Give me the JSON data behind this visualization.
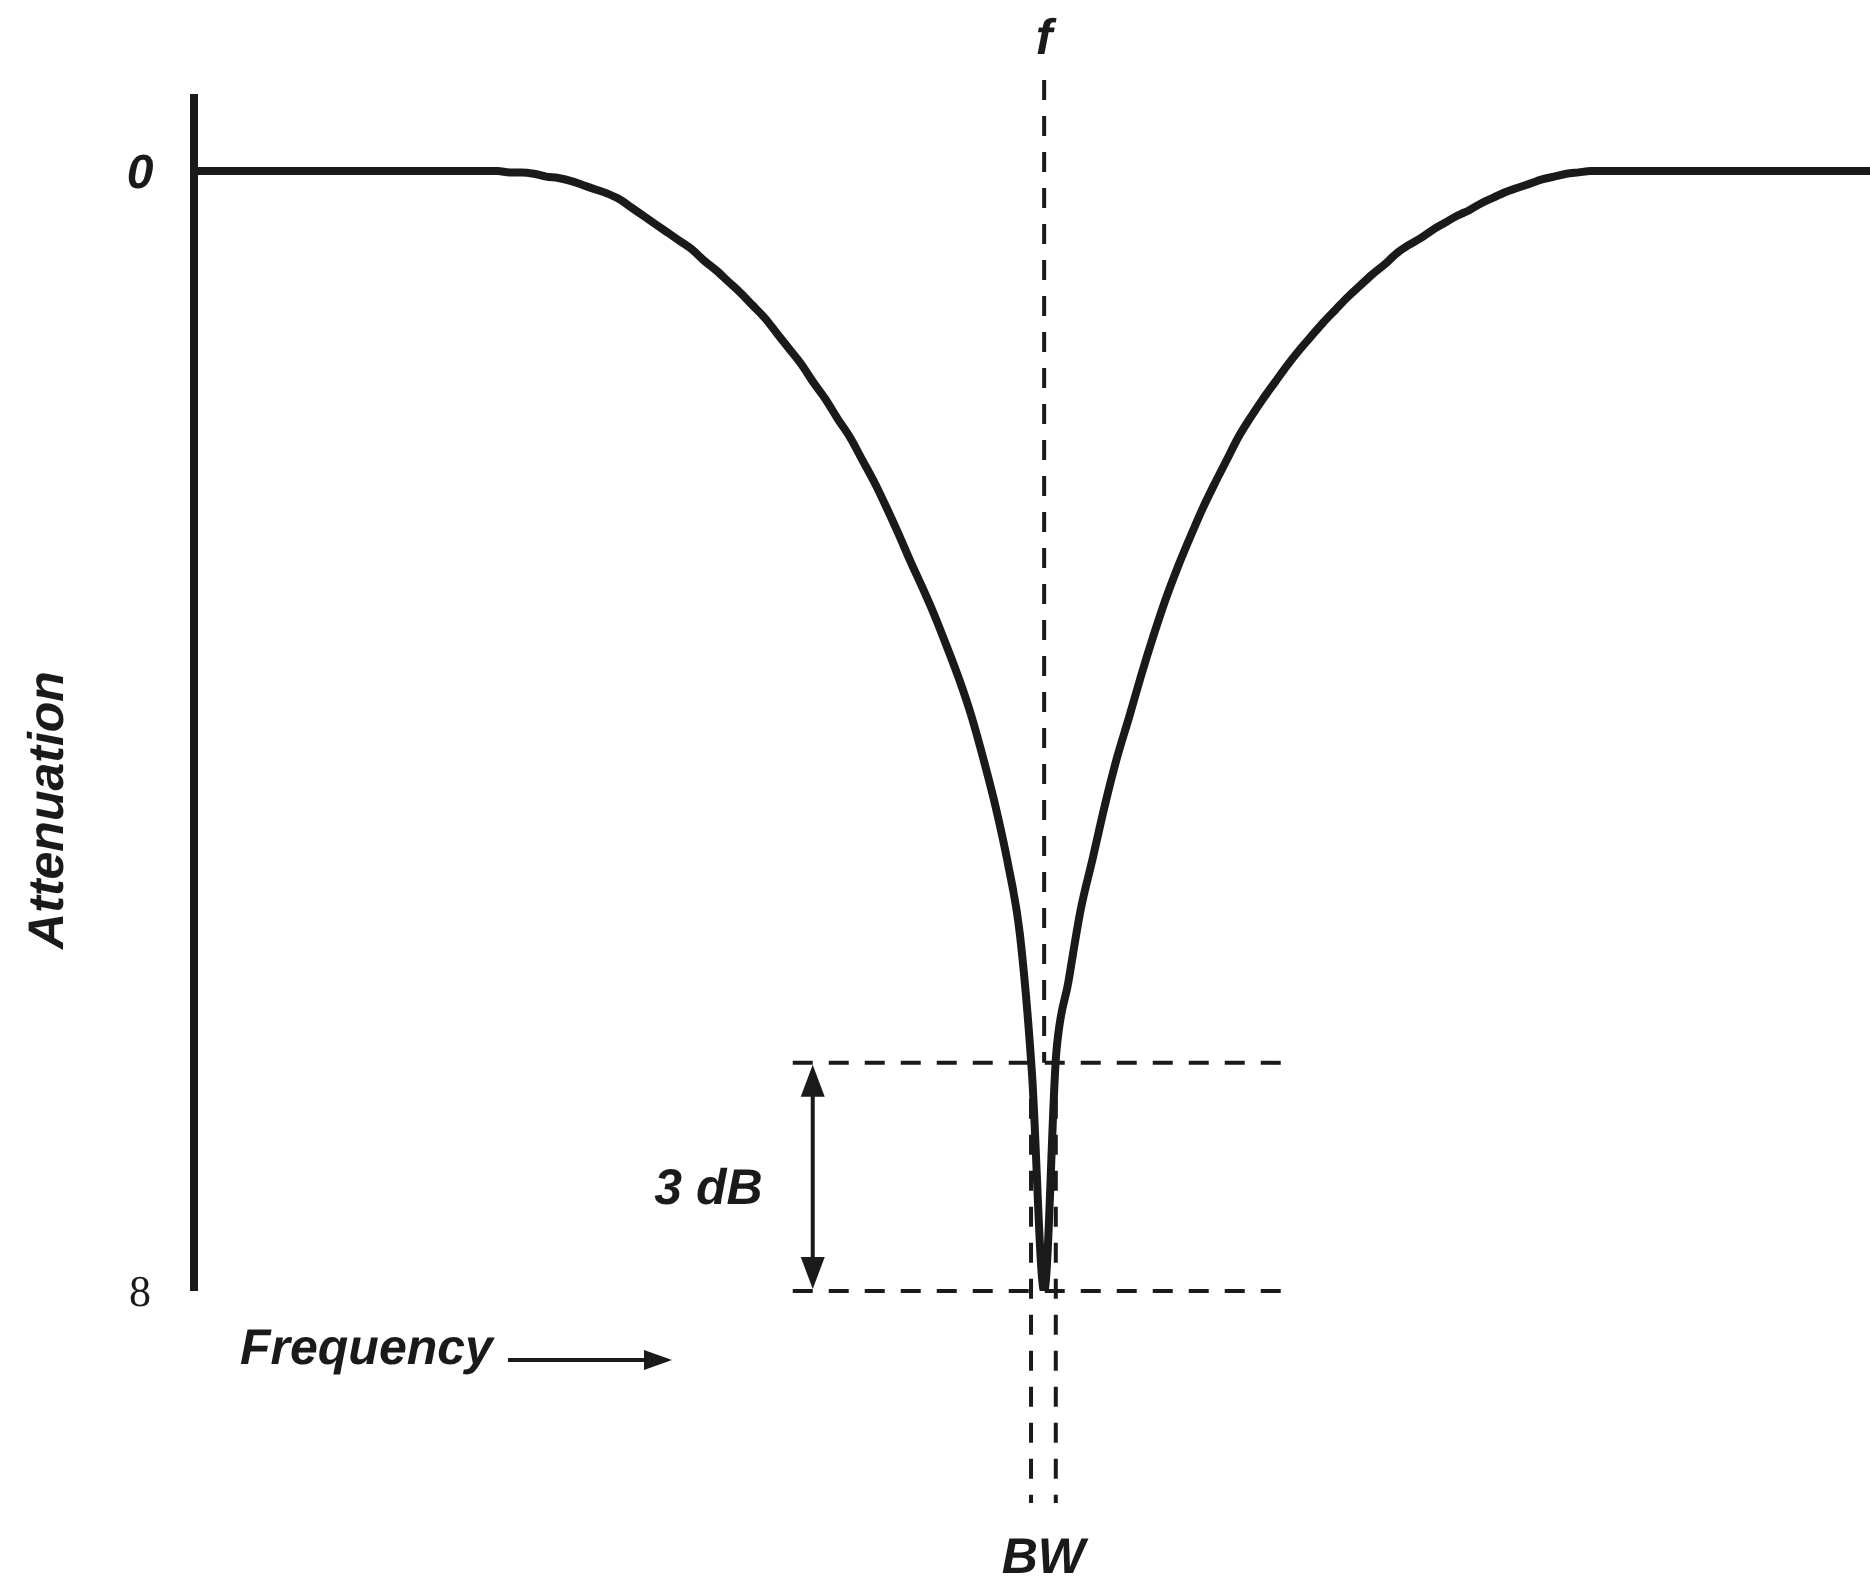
{
  "chart_data": {
    "type": "line",
    "xlabel": "Frequency",
    "ylabel": "Attenuation",
    "categories": [
      null,
      null,
      null,
      null,
      null,
      null,
      null,
      null,
      null,
      null,
      null,
      null,
      null,
      null,
      null,
      null,
      null,
      null,
      null,
      null,
      null,
      null,
      null,
      null,
      null,
      null,
      null,
      null,
      null,
      null,
      null,
      null,
      null,
      null,
      null,
      null,
      null,
      null,
      null,
      null,
      null,
      null,
      null,
      null,
      null,
      null,
      null,
      null,
      null,
      null,
      null,
      null,
      null,
      null,
      null,
      null,
      null,
      null,
      null,
      null,
      null,
      null,
      null,
      null,
      null,
      null,
      null,
      null,
      null,
      null,
      null,
      null,
      null,
      null,
      null,
      null,
      null,
      null,
      null,
      null,
      null,
      null,
      null,
      null,
      null,
      null,
      null,
      null,
      null,
      null,
      null,
      null,
      null,
      null,
      null,
      null,
      null,
      null,
      null,
      null,
      null,
      null,
      null,
      null,
      null,
      null,
      null,
      null,
      null,
      null,
      null,
      null,
      null,
      null,
      null,
      null,
      null,
      null,
      null,
      null,
      null,
      null,
      null,
      null,
      null,
      null,
      null,
      null,
      null,
      null,
      null,
      null,
      null,
      null,
      null,
      null,
      null,
      null,
      null
    ],
    "values": [
      0,
      0,
      0,
      0,
      0,
      0,
      0,
      0,
      0,
      0,
      0,
      0,
      0,
      0,
      0,
      0,
      0,
      0,
      0,
      0,
      0,
      0,
      0,
      0,
      0,
      0,
      0.01,
      0.01,
      0.02,
      0.04,
      0.05,
      0.07,
      0.1,
      0.13,
      0.16,
      0.2,
      0.26,
      0.32,
      0.38,
      0.44,
      0.5,
      0.56,
      0.64,
      0.71,
      0.79,
      0.87,
      0.96,
      1.05,
      1.16,
      1.27,
      1.38,
      1.51,
      1.63,
      1.77,
      1.9,
      2.06,
      2.22,
      2.4,
      2.59,
      2.79,
      2.98,
      3.18,
      3.4,
      3.63,
      3.89,
      4.2,
      4.54,
      4.94,
      5.45,
      6.45,
      8,
      6.3,
      5.79,
      5.28,
      4.91,
      4.53,
      4.19,
      3.9,
      3.6,
      3.32,
      3.06,
      2.83,
      2.62,
      2.42,
      2.24,
      2.07,
      1.9,
      1.76,
      1.63,
      1.51,
      1.39,
      1.28,
      1.18,
      1.08,
      0.99,
      0.9,
      0.82,
      0.74,
      0.67,
      0.59,
      0.53,
      0.48,
      0.42,
      0.37,
      0.32,
      0.28,
      0.23,
      0.19,
      0.15,
      0.12,
      0.09,
      0.06,
      0.04,
      0.02,
      0.01,
      0,
      0,
      0,
      0,
      0,
      0,
      0,
      0,
      0,
      0,
      0,
      0,
      0,
      0,
      0,
      0,
      0,
      0,
      0,
      0,
      0,
      0,
      0,
      0
    ],
    "color": "#1a1a1a",
    "ylim": [
      8,
      -0.55
    ],
    "yticks": [
      0,
      8
    ],
    "ref_lines": [
      {
        "axis": "y",
        "value": 6.37,
        "line_style": "dashed"
      },
      {
        "axis": "y",
        "value": 8,
        "line_style": "dashed"
      }
    ],
    "annotations": [
      "f",
      "BW",
      "3 dB"
    ]
  }
}
